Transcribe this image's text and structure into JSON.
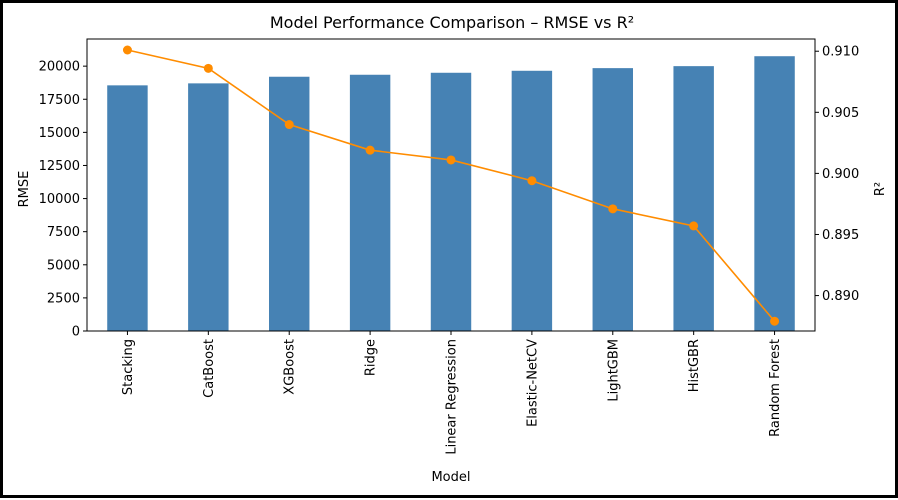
{
  "chart_data": {
    "type": "bar",
    "title": "Model Performance Comparison – RMSE vs R²",
    "xlabel": "Model",
    "ylabel_left": "RMSE",
    "ylabel_right": "R²",
    "categories": [
      "Stacking",
      "CatBoost",
      "XGBoost",
      "Ridge",
      "Linear Regression",
      "Elastic-NetCV",
      "LightGBM",
      "HistGBR",
      "Random Forest"
    ],
    "ylim_left": [
      0,
      22050
    ],
    "ylim_right": [
      0.8871,
      0.911
    ],
    "yticks_left": [
      0,
      2500,
      5000,
      7500,
      10000,
      12500,
      15000,
      17500,
      20000
    ],
    "yticks_right": [
      "0.890",
      "0.895",
      "0.900",
      "0.905",
      "0.910"
    ],
    "series": [
      {
        "name": "RMSE",
        "kind": "bar",
        "axis": "left",
        "color": "#4682b4",
        "values": [
          18550,
          18700,
          19200,
          19350,
          19500,
          19650,
          19850,
          20000,
          20750
        ]
      },
      {
        "name": "R²",
        "kind": "line",
        "axis": "right",
        "color": "#ff8c00",
        "values": [
          0.9101,
          0.9086,
          0.904,
          0.9019,
          0.9011,
          0.8994,
          0.8971,
          0.8957,
          0.8879
        ]
      }
    ],
    "grid": false,
    "legend": "none"
  }
}
